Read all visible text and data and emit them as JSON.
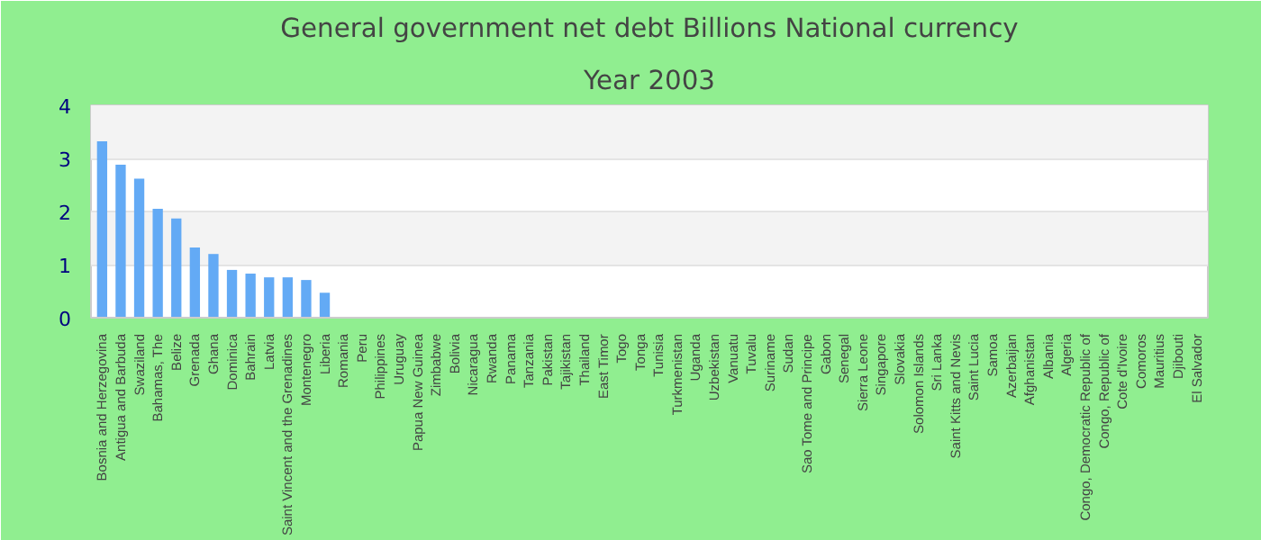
{
  "chart_data": {
    "type": "bar",
    "title": "General government net debt Billions National currency",
    "subtitle": "Year 2003",
    "categories": [
      "Bosnia and Herzegovina",
      "Antigua and Barbuda",
      "Swaziland",
      "Bahamas, The",
      "Belize",
      "Grenada",
      "Ghana",
      "Dominica",
      "Bahrain",
      "Latvia",
      "Saint Vincent and the Grenadines",
      "Montenegro",
      "Liberia",
      "Romania",
      "Peru",
      "Philippines",
      "Uruguay",
      "Papua New Guinea",
      "Zimbabwe",
      "Bolivia",
      "Nicaragua",
      "Rwanda",
      "Panama",
      "Tanzania",
      "Pakistan",
      "Tajikistan",
      "Thailand",
      "East Timor",
      "Togo",
      "Tonga",
      "Tunisia",
      "Turkmenistan",
      "Uganda",
      "Uzbekistan",
      "Vanuatu",
      "Tuvalu",
      "Suriname",
      "Sudan",
      "Sao Tome and Principe",
      "Gabon",
      "Senegal",
      "Sierra Leone",
      "Singapore",
      "Slovakia",
      "Solomon Islands",
      "Sri Lanka",
      "Saint Kitts and Nevis",
      "Saint Lucia",
      "Samoa",
      "Azerbaijan",
      "Afghanistan",
      "Albania",
      "Algeria",
      "Congo, Democratic Republic of",
      "Congo, Republic of",
      "Cote d'Ivoire",
      "Comoros",
      "Mauritius",
      "Djibouti",
      "El Salvador"
    ],
    "values": [
      3.32,
      2.88,
      2.62,
      2.05,
      1.87,
      1.32,
      1.2,
      0.9,
      0.83,
      0.76,
      0.76,
      0.71,
      0.47,
      null,
      null,
      null,
      null,
      null,
      null,
      null,
      null,
      null,
      null,
      null,
      null,
      null,
      null,
      null,
      null,
      null,
      null,
      null,
      null,
      null,
      null,
      null,
      null,
      null,
      null,
      null,
      null,
      null,
      null,
      null,
      null,
      null,
      null,
      null,
      null,
      null,
      null,
      null,
      null,
      null,
      null,
      null,
      null,
      null,
      null,
      null
    ],
    "color": "#63aaf5",
    "ylim": [
      0,
      4
    ],
    "yticks": [
      0,
      1,
      2,
      3,
      4
    ],
    "grid": "y"
  }
}
